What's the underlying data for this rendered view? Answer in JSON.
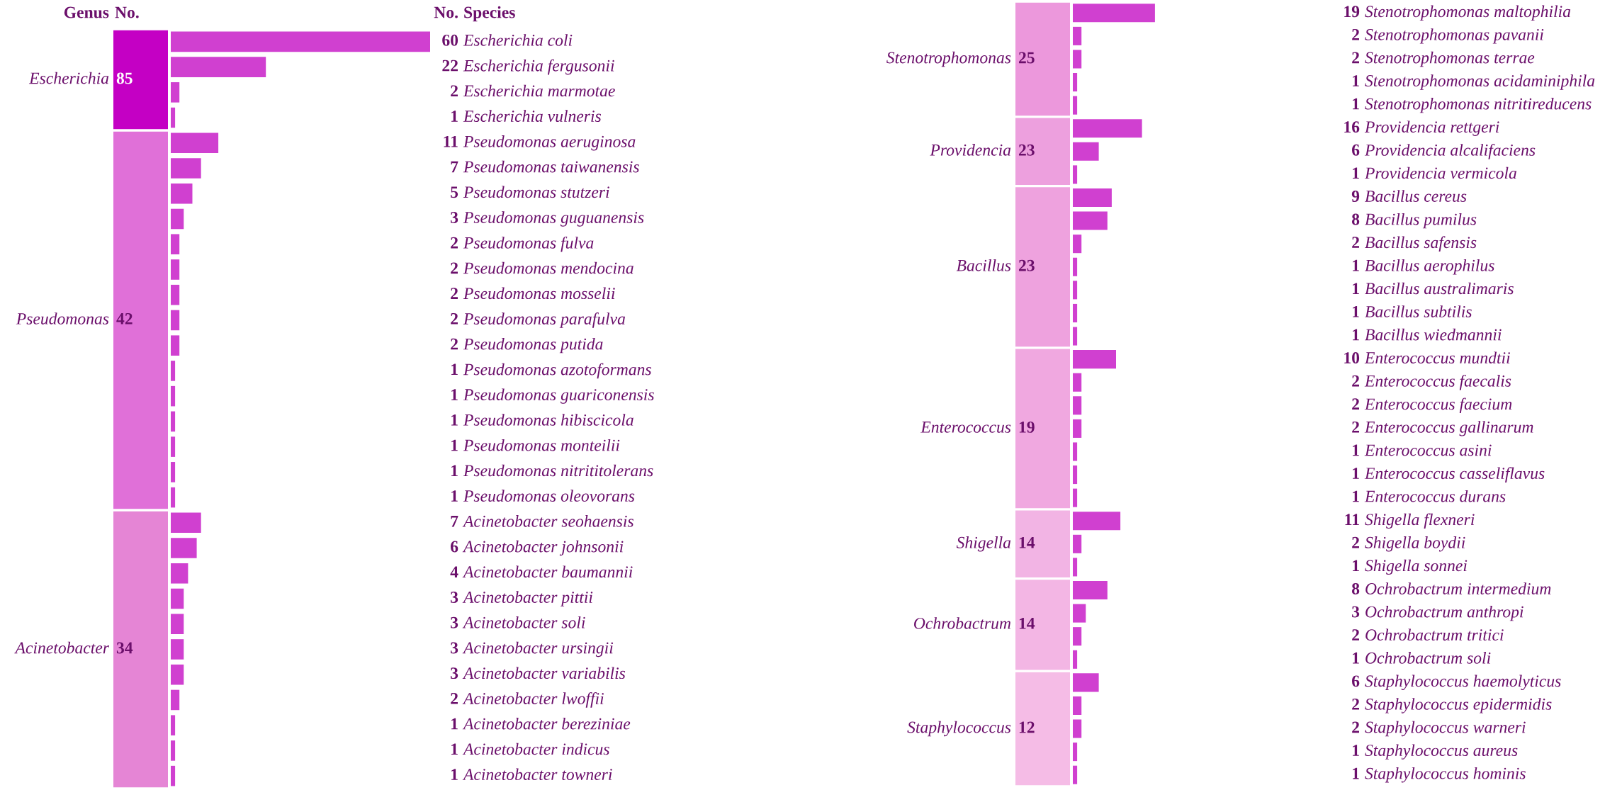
{
  "chart_data": [
    {
      "type": "other",
      "data_labels": true,
      "annotations": [
        "Genus",
        "No."
      ],
      "categories": [
        "Escherichia",
        "Pseudomonas",
        "Acinetobacter"
      ],
      "values": [
        85,
        42,
        34
      ],
      "colors": [
        "#c400c4",
        "#e070d8",
        "#e585d5"
      ]
    },
    {
      "type": "bar",
      "orientation": "horizontal",
      "data_labels": true,
      "annotations": [
        "No.",
        "Species"
      ],
      "color": "#d040d0",
      "categories": [
        "Escherichia coli",
        "Escherichia fergusonii",
        "Escherichia marmotae",
        "Escherichia vulneris",
        "Pseudomonas aeruginosa",
        "Pseudomonas taiwanensis",
        "Pseudomonas stutzeri",
        "Pseudomonas guguanensis",
        "Pseudomonas fulva",
        "Pseudomonas mendocina",
        "Pseudomonas mosselii",
        "Pseudomonas parafulva",
        "Pseudomonas putida",
        "Pseudomonas azotoformans",
        "Pseudomonas guariconensis",
        "Pseudomonas hibiscicola",
        "Pseudomonas monteilii",
        "Pseudomonas nitrititolerans",
        "Pseudomonas oleovorans",
        "Acinetobacter seohaensis",
        "Acinetobacter johnsonii",
        "Acinetobacter baumannii",
        "Acinetobacter pittii",
        "Acinetobacter soli",
        "Acinetobacter ursingii",
        "Acinetobacter variabilis",
        "Acinetobacter lwoffii",
        "Acinetobacter bereziniae",
        "Acinetobacter indicus",
        "Acinetobacter towneri"
      ],
      "values": [
        60,
        22,
        2,
        1,
        11,
        7,
        5,
        3,
        2,
        2,
        2,
        2,
        2,
        1,
        1,
        1,
        1,
        1,
        1,
        7,
        6,
        4,
        3,
        3,
        3,
        3,
        2,
        1,
        1,
        1
      ]
    },
    {
      "type": "other",
      "data_labels": true,
      "categories": [
        "Stenotrophomonas",
        "Providencia",
        "Bacillus",
        "Enterococcus",
        "Shigella",
        "Ochrobactrum",
        "Staphylococcus"
      ],
      "values": [
        25,
        23,
        23,
        19,
        14,
        14,
        12
      ],
      "colors": [
        "#ec98dc",
        "#eda0de",
        "#eea2de",
        "#f0a8e0",
        "#f2b4e4",
        "#f3b6e4",
        "#f5bce6"
      ]
    },
    {
      "type": "bar",
      "orientation": "horizontal",
      "data_labels": true,
      "color": "#d040d0",
      "categories": [
        "Stenotrophomonas maltophilia",
        "Stenotrophomonas pavanii",
        "Stenotrophomonas terrae",
        "Stenotrophomonas acidaminiphila",
        "Stenotrophomonas nitritireducens",
        "Providencia rettgeri",
        "Providencia alcalifaciens",
        "Providencia vermicola",
        "Bacillus cereus",
        "Bacillus pumilus",
        "Bacillus safensis",
        "Bacillus aerophilus",
        "Bacillus australimaris",
        "Bacillus subtilis",
        "Bacillus wiedmannii",
        "Enterococcus mundtii",
        "Enterococcus faecalis",
        "Enterococcus faecium",
        "Enterococcus gallinarum",
        "Enterococcus asini",
        "Enterococcus casseliflavus",
        "Enterococcus durans",
        "Shigella flexneri",
        "Shigella boydii",
        "Shigella sonnei",
        "Ochrobactrum intermedium",
        "Ochrobactrum anthropi",
        "Ochrobactrum tritici",
        "Ochrobactrum soli",
        "Staphylococcus haemolyticus",
        "Staphylococcus epidermidis",
        "Staphylococcus warneri",
        "Staphylococcus aureus",
        "Staphylococcus hominis"
      ],
      "values": [
        19,
        2,
        2,
        1,
        1,
        16,
        6,
        1,
        9,
        8,
        2,
        1,
        1,
        1,
        1,
        10,
        2,
        2,
        2,
        1,
        1,
        1,
        11,
        2,
        1,
        8,
        3,
        2,
        1,
        6,
        2,
        2,
        1,
        1
      ]
    }
  ]
}
